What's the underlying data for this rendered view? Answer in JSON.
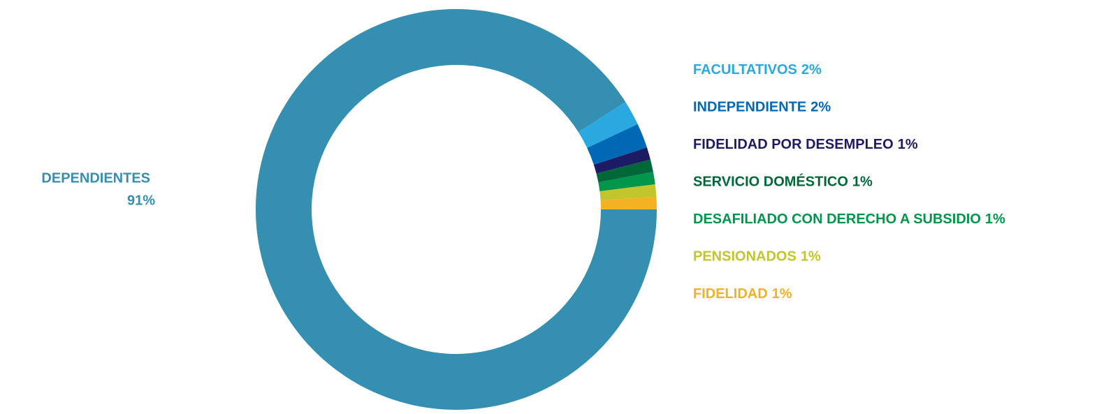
{
  "chart_data": {
    "type": "donut",
    "categories": [
      "DEPENDIENTES",
      "FACULTATIVOS",
      "INDEPENDIENTE",
      "FIDELIDAD POR DESEMPLEO",
      "SERVICIO DOMÉSTICO",
      "DESAFILIADO CON DERECHO A SUBSIDIO",
      "PENSIONADOS",
      "FIDELIDAD"
    ],
    "values": [
      91,
      2,
      2,
      1,
      1,
      1,
      1,
      1
    ],
    "value_labels": [
      "91%",
      "2%",
      "2%",
      "1%",
      "1%",
      "1%",
      "1%",
      "1%"
    ],
    "colors": [
      "#358fb0",
      "#29a9e0",
      "#0068b4",
      "#1d1b63",
      "#006838",
      "#00964b",
      "#c2c52b",
      "#f4b223"
    ]
  }
}
